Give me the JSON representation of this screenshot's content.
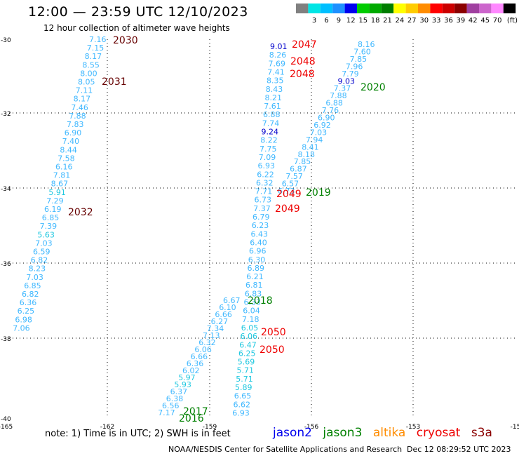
{
  "header": {
    "title": "12:00 — 23:59 UTC 12/10/2023",
    "subtitle": "12 hour collection of altimeter wave heights"
  },
  "legend": {
    "unit": "(ft)",
    "bins": [
      {
        "label": "",
        "color": "#808080"
      },
      {
        "label": "3",
        "color": "#00e5e5"
      },
      {
        "label": "6",
        "color": "#00bfff"
      },
      {
        "label": "9",
        "color": "#1e90ff"
      },
      {
        "label": "12",
        "color": "#0000ee"
      },
      {
        "label": "15",
        "color": "#00cc00"
      },
      {
        "label": "18",
        "color": "#00aa00"
      },
      {
        "label": "21",
        "color": "#007d00"
      },
      {
        "label": "24",
        "color": "#ffff00"
      },
      {
        "label": "27",
        "color": "#ffcc00"
      },
      {
        "label": "30",
        "color": "#ff8c00"
      },
      {
        "label": "33",
        "color": "#ff0000"
      },
      {
        "label": "36",
        "color": "#cc0000"
      },
      {
        "label": "39",
        "color": "#8b0000"
      },
      {
        "label": "42",
        "color": "#a040a0"
      },
      {
        "label": "45",
        "color": "#cc66cc"
      },
      {
        "label": "70",
        "color": "#ff88ff"
      },
      {
        "label": "",
        "color": "#000000"
      }
    ]
  },
  "axes": {
    "lon_ticks": [
      "-165",
      "-162",
      "-159",
      "-156",
      "-153",
      "-15"
    ],
    "lat_ticks": [
      "-30",
      "-32",
      "-34",
      "-36",
      "-38",
      "-40"
    ]
  },
  "track_colors": {
    "light": "#40b8ff",
    "cyan": "#20c8e0",
    "navy": "#0000cc",
    "dark": "#660000",
    "red": "#ee0000",
    "green": "#008000"
  },
  "tracks": {
    "track_2030": [
      {
        "v": "7.16",
        "c": "light"
      },
      {
        "v": "7.15",
        "c": "light"
      },
      {
        "v": "8.17",
        "c": "light"
      },
      {
        "v": "8.55",
        "c": "light"
      },
      {
        "v": "8.00",
        "c": "light"
      },
      {
        "v": "8.05",
        "c": "light"
      },
      {
        "v": "7.11",
        "c": "light"
      },
      {
        "v": "8.17",
        "c": "light"
      },
      {
        "v": "7.46",
        "c": "light"
      },
      {
        "v": "7.88",
        "c": "light"
      },
      {
        "v": "7.83",
        "c": "light"
      },
      {
        "v": "6.90",
        "c": "light"
      },
      {
        "v": "7.40",
        "c": "light"
      },
      {
        "v": "8.44",
        "c": "light"
      },
      {
        "v": "7.58",
        "c": "light"
      },
      {
        "v": "6.16",
        "c": "light"
      },
      {
        "v": "7.81",
        "c": "light"
      },
      {
        "v": "8.67",
        "c": "light"
      },
      {
        "v": "5.91",
        "c": "cyan"
      },
      {
        "v": "7.29",
        "c": "light"
      },
      {
        "v": "6.19",
        "c": "light"
      },
      {
        "v": "6.85",
        "c": "light"
      },
      {
        "v": "7.39",
        "c": "light"
      },
      {
        "v": "5.63",
        "c": "cyan"
      },
      {
        "v": "7.03",
        "c": "light"
      },
      {
        "v": "6.59",
        "c": "light"
      },
      {
        "v": "6.82",
        "c": "light"
      },
      {
        "v": "8.23",
        "c": "light"
      },
      {
        "v": "7.03",
        "c": "light"
      },
      {
        "v": "6.85",
        "c": "light"
      },
      {
        "v": "6.82",
        "c": "light"
      },
      {
        "v": "6.36",
        "c": "light"
      },
      {
        "v": "6.25",
        "c": "light"
      },
      {
        "v": "6.98",
        "c": "light"
      },
      {
        "v": "7.06",
        "c": "light"
      }
    ],
    "track_2047": [
      {
        "v": "9.01",
        "c": "navy"
      },
      {
        "v": "8.26",
        "c": "light"
      },
      {
        "v": "7.69",
        "c": "light"
      },
      {
        "v": "7.41",
        "c": "light"
      },
      {
        "v": "8.35",
        "c": "light"
      },
      {
        "v": "8.43",
        "c": "light"
      },
      {
        "v": "8.21",
        "c": "light"
      },
      {
        "v": "7.61",
        "c": "light"
      },
      {
        "v": "6.88",
        "c": "light"
      },
      {
        "v": "7.74",
        "c": "light"
      },
      {
        "v": "9.24",
        "c": "navy"
      },
      {
        "v": "8.22",
        "c": "light"
      },
      {
        "v": "7.75",
        "c": "light"
      },
      {
        "v": "7.09",
        "c": "light"
      },
      {
        "v": "6.93",
        "c": "light"
      },
      {
        "v": "6.22",
        "c": "light"
      },
      {
        "v": "6.32",
        "c": "light"
      },
      {
        "v": "7.71",
        "c": "light"
      },
      {
        "v": "6.73",
        "c": "light"
      },
      {
        "v": "7.37",
        "c": "light"
      },
      {
        "v": "6.79",
        "c": "light"
      },
      {
        "v": "6.23",
        "c": "light"
      },
      {
        "v": "6.43",
        "c": "light"
      },
      {
        "v": "6.40",
        "c": "light"
      },
      {
        "v": "6.96",
        "c": "light"
      },
      {
        "v": "6.30",
        "c": "light"
      },
      {
        "v": "6.89",
        "c": "light"
      },
      {
        "v": "6.21",
        "c": "light"
      },
      {
        "v": "6.81",
        "c": "light"
      },
      {
        "v": "6.83",
        "c": "light"
      },
      {
        "v": "6.33",
        "c": "light"
      },
      {
        "v": "6.04",
        "c": "light"
      },
      {
        "v": "7.18",
        "c": "light"
      },
      {
        "v": "6.05",
        "c": "cyan"
      },
      {
        "v": "6.06",
        "c": "cyan"
      },
      {
        "v": "6.47",
        "c": "cyan"
      },
      {
        "v": "6.25",
        "c": "cyan"
      },
      {
        "v": "5.69",
        "c": "cyan"
      },
      {
        "v": "5.71",
        "c": "cyan"
      },
      {
        "v": "5.71",
        "c": "cyan"
      },
      {
        "v": "5.89",
        "c": "cyan"
      },
      {
        "v": "6.65",
        "c": "light"
      },
      {
        "v": "6.62",
        "c": "light"
      },
      {
        "v": "6.93",
        "c": "light"
      }
    ],
    "track_2020": [
      {
        "v": "8.16",
        "c": "light"
      },
      {
        "v": "7.60",
        "c": "light"
      },
      {
        "v": "7.85",
        "c": "light"
      },
      {
        "v": "7.96",
        "c": "light"
      },
      {
        "v": "7.79",
        "c": "light"
      },
      {
        "v": "9.03",
        "c": "navy"
      },
      {
        "v": "7.37",
        "c": "light"
      },
      {
        "v": "7.88",
        "c": "light"
      },
      {
        "v": "6.88",
        "c": "light"
      },
      {
        "v": "7.76",
        "c": "light"
      },
      {
        "v": "6.90",
        "c": "light"
      },
      {
        "v": "6.92",
        "c": "light"
      },
      {
        "v": "7.03",
        "c": "light"
      },
      {
        "v": "7.94",
        "c": "light"
      },
      {
        "v": "8.41",
        "c": "light"
      },
      {
        "v": "8.18",
        "c": "light"
      },
      {
        "v": "7.85",
        "c": "light"
      },
      {
        "v": "6.87",
        "c": "light"
      },
      {
        "v": "7.57",
        "c": "light"
      },
      {
        "v": "6.57",
        "c": "light"
      },
      {
        "v": "6.73",
        "c": "light"
      }
    ],
    "track_2018": [
      {
        "v": "6.67",
        "c": "light"
      },
      {
        "v": "6.10",
        "c": "light"
      },
      {
        "v": "6.66",
        "c": "light"
      },
      {
        "v": "6.27",
        "c": "light"
      },
      {
        "v": "7.34",
        "c": "light"
      },
      {
        "v": "7.13",
        "c": "light"
      },
      {
        "v": "6.32",
        "c": "light"
      },
      {
        "v": "6.06",
        "c": "light"
      },
      {
        "v": "6.66",
        "c": "light"
      },
      {
        "v": "6.36",
        "c": "light"
      },
      {
        "v": "6.02",
        "c": "light"
      },
      {
        "v": "5.97",
        "c": "cyan"
      },
      {
        "v": "5.93",
        "c": "cyan"
      },
      {
        "v": "6.37",
        "c": "light"
      },
      {
        "v": "6.38",
        "c": "light"
      },
      {
        "v": "6.56",
        "c": "light"
      },
      {
        "v": "7.17",
        "c": "light"
      }
    ]
  },
  "pass_labels": [
    {
      "text": "2030",
      "c": "dark"
    },
    {
      "text": "2031",
      "c": "dark"
    },
    {
      "text": "2032",
      "c": "dark"
    },
    {
      "text": "2047",
      "c": "red"
    },
    {
      "text": "2048",
      "c": "red"
    },
    {
      "text": "2048",
      "c": "red"
    },
    {
      "text": "2049",
      "c": "red"
    },
    {
      "text": "2049",
      "c": "red"
    },
    {
      "text": "2050",
      "c": "red"
    },
    {
      "text": "2050",
      "c": "red"
    },
    {
      "text": "2020",
      "c": "green"
    },
    {
      "text": "2019",
      "c": "green"
    },
    {
      "text": "2018",
      "c": "green"
    },
    {
      "text": "2017",
      "c": "green"
    },
    {
      "text": "2016",
      "c": "green"
    }
  ],
  "footer": {
    "note": "note:  1) Time is in UTC;  2) SWH is in feet",
    "satellites": [
      {
        "name": "jason2",
        "color": "#0000ee"
      },
      {
        "name": "jason3",
        "color": "#008000"
      },
      {
        "name": "altika",
        "color": "#ff8c00"
      },
      {
        "name": "cryosat",
        "color": "#ee0000"
      },
      {
        "name": "s3a",
        "color": "#8b0000"
      }
    ],
    "credit": "NOAA/NESDIS Center for Satellite Applications and Research",
    "timestamp": "Dec 12 08:29:52 UTC 2023"
  }
}
